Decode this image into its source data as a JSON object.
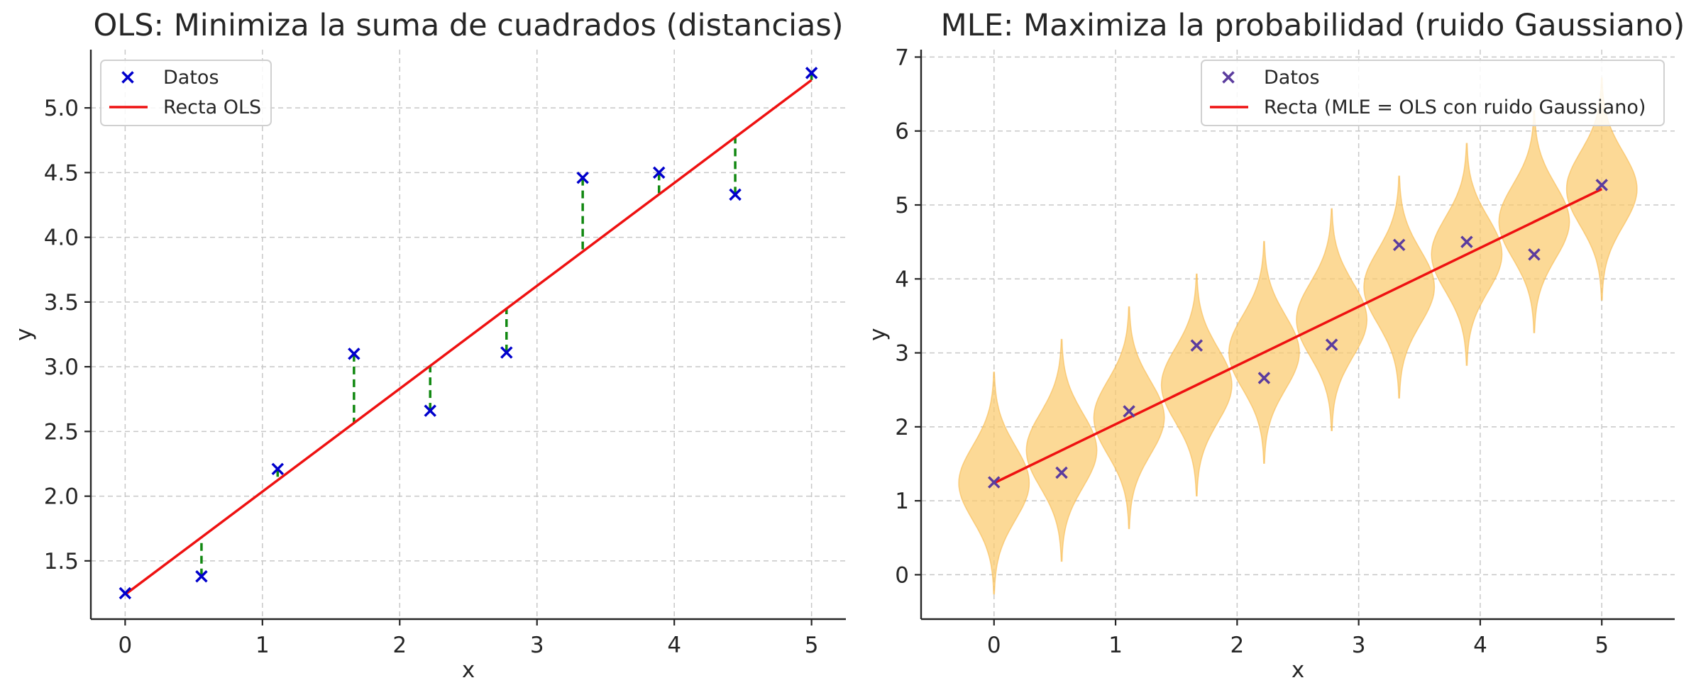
{
  "chart_data": [
    {
      "type": "scatter",
      "title": "OLS: Minimiza la suma de cuadrados (distancias)",
      "xlabel": "x",
      "ylabel": "y",
      "xlim": [
        -0.25,
        5.25
      ],
      "ylim": [
        1.05,
        5.45
      ],
      "xticks": [
        "0",
        "1",
        "2",
        "3",
        "4",
        "5"
      ],
      "yticks": [
        "1.5",
        "2.0",
        "2.5",
        "3.0",
        "3.5",
        "4.0",
        "4.5",
        "5.0"
      ],
      "grid": true,
      "legend_position": "upper-left",
      "series": [
        {
          "name": "Datos",
          "marker": "x",
          "color": "#0000cc",
          "x": [
            0,
            0.556,
            1.111,
            1.667,
            2.222,
            2.778,
            3.333,
            3.889,
            4.444,
            5.0
          ],
          "y": [
            1.25,
            1.38,
            2.21,
            3.1,
            2.66,
            3.11,
            4.46,
            4.5,
            4.33,
            5.27
          ]
        },
        {
          "name": "Recta OLS",
          "kind": "line",
          "color": "#ee1111",
          "intercept": 1.24,
          "slope": 0.795
        }
      ],
      "residuals": {
        "color": "#118811",
        "style": "dashed"
      }
    },
    {
      "type": "scatter",
      "title": "MLE: Maximiza la probabilidad (ruido Gaussiano)",
      "xlabel": "x",
      "ylabel": "y",
      "xlim": [
        -0.6,
        5.6
      ],
      "ylim": [
        -0.6,
        7.1
      ],
      "xticks": [
        "0",
        "1",
        "2",
        "3",
        "4",
        "5"
      ],
      "yticks": [
        "0",
        "1",
        "2",
        "3",
        "4",
        "5",
        "6",
        "7"
      ],
      "grid": true,
      "legend_position": "upper-right",
      "series": [
        {
          "name": "Datos",
          "marker": "x",
          "color": "#5b3c9e",
          "x": [
            0,
            0.556,
            1.111,
            1.667,
            2.222,
            2.778,
            3.333,
            3.889,
            4.444,
            5.0
          ],
          "y": [
            1.25,
            1.38,
            2.21,
            3.1,
            2.66,
            3.11,
            4.46,
            4.5,
            4.33,
            5.27
          ]
        },
        {
          "name": "Recta (MLE = OLS con ruido Gaussiano)",
          "kind": "line",
          "color": "#ee1111",
          "intercept": 1.24,
          "slope": 0.795
        }
      ],
      "gaussian_noise": {
        "sigma": 0.5,
        "color": "#fbc96a"
      }
    }
  ]
}
